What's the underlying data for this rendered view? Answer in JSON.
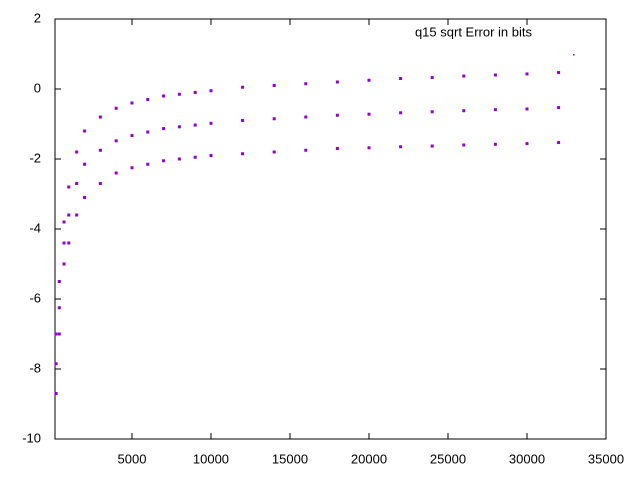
{
  "chart_data": {
    "type": "scatter",
    "series": [
      {
        "name": "q15 sqrt Error in bits",
        "color": "#9400d3",
        "x": [
          200,
          200,
          200,
          400,
          400,
          400,
          700,
          700,
          700,
          1000,
          1000,
          1000,
          1500,
          1500,
          1500,
          2000,
          2000,
          2000,
          3000,
          3000,
          3000,
          4000,
          4000,
          4000,
          5000,
          5000,
          5000,
          6000,
          6000,
          6000,
          7000,
          7000,
          7000,
          8000,
          8000,
          8000,
          9000,
          9000,
          9000,
          10000,
          10000,
          10000,
          12000,
          12000,
          12000,
          14000,
          14000,
          14000,
          16000,
          16000,
          16000,
          18000,
          18000,
          18000,
          20000,
          20000,
          20000,
          22000,
          22000,
          22000,
          24000,
          24000,
          24000,
          26000,
          26000,
          26000,
          28000,
          28000,
          28000,
          30000,
          30000,
          30000,
          32000,
          32000,
          32000
        ],
        "values": [
          -7,
          -7.85,
          -8.7,
          -5.5,
          -6.25,
          -7,
          -3.8,
          -4.4,
          -5,
          -2.8,
          -3.6,
          -4.4,
          -1.8,
          -2.7,
          -3.6,
          -1.2,
          -2.15,
          -3.1,
          -0.8,
          -1.75,
          -2.7,
          -0.55,
          -1.48,
          -2.4,
          -0.4,
          -1.33,
          -2.25,
          -0.3,
          -1.23,
          -2.15,
          -0.2,
          -1.13,
          -2.05,
          -0.15,
          -1.08,
          -2,
          -0.1,
          -1.03,
          -1.95,
          -0.05,
          -0.98,
          -1.9,
          0.05,
          -0.9,
          -1.85,
          0.1,
          -0.85,
          -1.8,
          0.15,
          -0.8,
          -1.75,
          0.2,
          -0.75,
          -1.7,
          0.25,
          -0.72,
          -1.68,
          0.3,
          -0.68,
          -1.65,
          0.33,
          -0.65,
          -1.63,
          0.37,
          -0.62,
          -1.6,
          0.4,
          -0.59,
          -1.58,
          0.43,
          -0.57,
          -1.56,
          0.47,
          -0.53,
          -1.53
        ]
      }
    ],
    "xlim": [
      128,
      35000
    ],
    "xticks": [
      5000,
      10000,
      15000,
      20000,
      25000,
      30000,
      35000
    ],
    "ylim": [
      -10,
      2
    ],
    "yticks": [
      -10,
      -8,
      -6,
      -4,
      -2,
      0,
      2
    ],
    "legend": "top-right"
  }
}
